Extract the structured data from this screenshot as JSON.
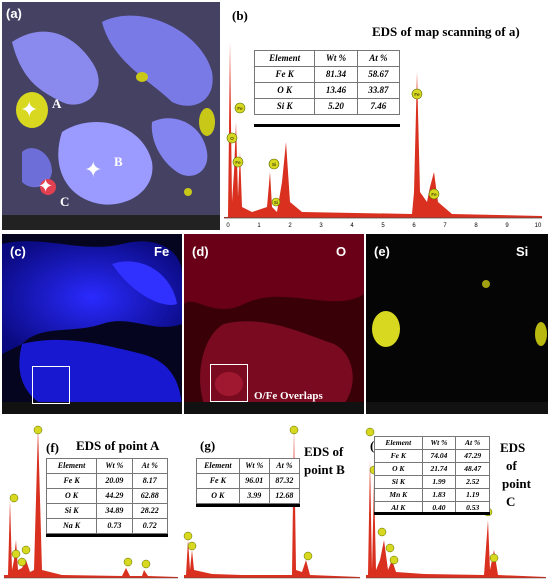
{
  "panels": {
    "a": {
      "label": "(a)",
      "points": [
        "A",
        "B",
        "C"
      ]
    },
    "b": {
      "label": "(b)",
      "title": "EDS of map scanning of a)",
      "table": {
        "headers": [
          "Element",
          "Wt %",
          "At %"
        ],
        "rows": [
          [
            "Fe K",
            "81.34",
            "58.67"
          ],
          [
            "O K",
            "13.46",
            "33.87"
          ],
          [
            "Si K",
            "5.20",
            "7.46"
          ]
        ]
      },
      "peaks": [
        "O",
        "Fe",
        "Fe",
        "Si",
        "Si",
        "Fe",
        "Fe"
      ],
      "axis_ticks": [
        "0",
        "1",
        "2",
        "3",
        "4",
        "5",
        "6",
        "7",
        "8",
        "9",
        "10"
      ]
    },
    "c": {
      "label": "(c)",
      "element": "Fe"
    },
    "d": {
      "label": "(d)",
      "element": "O",
      "caption": "O/Fe Overlaps"
    },
    "e": {
      "label": "(e)",
      "element": "Si"
    },
    "f": {
      "label": "(f)",
      "title": "EDS of point A",
      "table": {
        "headers": [
          "Element",
          "Wt %",
          "At %"
        ],
        "rows": [
          [
            "Fe K",
            "20.09",
            "8.17"
          ],
          [
            "O K",
            "44.29",
            "62.88"
          ],
          [
            "Si K",
            "34.89",
            "28.22"
          ],
          [
            "Na K",
            "0.73",
            "0.72"
          ]
        ]
      }
    },
    "g": {
      "label": "(g)",
      "title_lines": [
        "EDS of",
        "point B"
      ],
      "table": {
        "headers": [
          "Element",
          "Wt %",
          "At %"
        ],
        "rows": [
          [
            "Fe K",
            "96.01",
            "87.32"
          ],
          [
            "O K",
            "3.99",
            "12.68"
          ]
        ]
      }
    },
    "h": {
      "label": "(h)",
      "title_lines": [
        "EDS",
        "of",
        "point",
        "C"
      ],
      "table": {
        "headers": [
          "Element",
          "Wt %",
          "At %"
        ],
        "rows": [
          [
            "Fe K",
            "74.04",
            "47.29"
          ],
          [
            "O K",
            "21.74",
            "48.47"
          ],
          [
            "Si K",
            "1.99",
            "2.52"
          ],
          [
            "Mn K",
            "1.83",
            "1.19"
          ],
          [
            "Al K",
            "0.40",
            "0.53"
          ]
        ]
      }
    }
  },
  "colors": {
    "fe_map": "#1a1aff",
    "o_map": "#c0102a",
    "si_map": "#e6e020",
    "spectrum": "#d9301f"
  }
}
